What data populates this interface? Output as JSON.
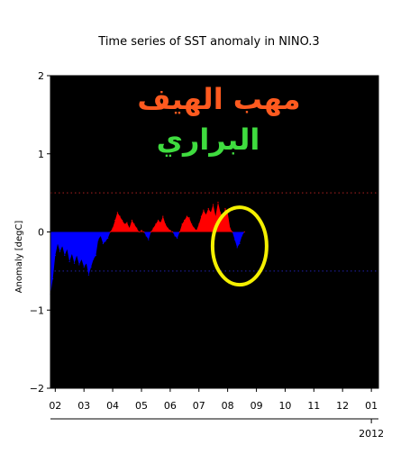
{
  "chart_data": {
    "type": "area",
    "title": "Time series of SST anomaly in NINO.3",
    "ylabel": "Anomaly [degC]",
    "xlabel": "",
    "ylim": [
      -2,
      2
    ],
    "xlim": [
      "2001-11-01",
      "2013-04-01"
    ],
    "yticks": [
      {
        "value": 2,
        "label": "2"
      },
      {
        "value": 1,
        "label": "1"
      },
      {
        "value": 0,
        "label": "0"
      },
      {
        "value": -1,
        "label": "−1"
      },
      {
        "value": -2,
        "label": "−2"
      }
    ],
    "xticks": [
      {
        "date": "2002-01-01",
        "label": "02"
      },
      {
        "date": "2003-01-01",
        "label": "03"
      },
      {
        "date": "2004-01-01",
        "label": "04"
      },
      {
        "date": "2005-01-01",
        "label": "05"
      },
      {
        "date": "2006-01-01",
        "label": "06"
      },
      {
        "date": "2007-01-01",
        "label": "07"
      },
      {
        "date": "2008-01-01",
        "label": "08"
      },
      {
        "date": "2009-01-01",
        "label": "09"
      },
      {
        "date": "2010-01-01",
        "label": "10"
      },
      {
        "date": "2011-01-01",
        "label": "11"
      },
      {
        "date": "2012-01-01",
        "label": "12"
      },
      {
        "date": "2013-01-01",
        "label": "01"
      }
    ],
    "secondary_axis": {
      "date": "2013-01-01",
      "label": "2012"
    },
    "thresholds": [
      {
        "value": 0.5,
        "style": "dotted",
        "color": "#8b1a1a"
      },
      {
        "value": -0.5,
        "style": "dotted",
        "color": "#1a1a8b"
      }
    ],
    "series": [
      {
        "positive_color": "#ff0000",
        "negative_color": "#0000ff",
        "points": [
          [
            "2001-11-01",
            -0.8
          ],
          [
            "2001-12-01",
            -0.6
          ],
          [
            "2002-01-01",
            -0.3
          ],
          [
            "2002-02-01",
            -0.15
          ],
          [
            "2002-03-01",
            -0.25
          ],
          [
            "2002-04-01",
            -0.18
          ],
          [
            "2002-05-01",
            -0.3
          ],
          [
            "2002-06-01",
            -0.22
          ],
          [
            "2002-07-01",
            -0.38
          ],
          [
            "2002-08-01",
            -0.28
          ],
          [
            "2002-09-01",
            -0.4
          ],
          [
            "2002-10-01",
            -0.3
          ],
          [
            "2002-11-01",
            -0.42
          ],
          [
            "2002-12-01",
            -0.35
          ],
          [
            "2003-01-01",
            -0.45
          ],
          [
            "2003-02-01",
            -0.4
          ],
          [
            "2003-03-01",
            -0.55
          ],
          [
            "2003-04-01",
            -0.45
          ],
          [
            "2003-05-01",
            -0.35
          ],
          [
            "2003-06-01",
            -0.3
          ],
          [
            "2003-07-01",
            -0.1
          ],
          [
            "2003-08-01",
            -0.05
          ],
          [
            "2003-09-01",
            -0.15
          ],
          [
            "2003-10-01",
            -0.12
          ],
          [
            "2003-11-01",
            -0.08
          ],
          [
            "2003-12-01",
            0.0
          ],
          [
            "2004-01-01",
            0.05
          ],
          [
            "2004-02-01",
            0.15
          ],
          [
            "2004-03-01",
            0.25
          ],
          [
            "2004-04-01",
            0.2
          ],
          [
            "2004-05-01",
            0.15
          ],
          [
            "2004-06-01",
            0.1
          ],
          [
            "2004-07-01",
            0.12
          ],
          [
            "2004-08-01",
            0.05
          ],
          [
            "2004-09-01",
            0.15
          ],
          [
            "2004-10-01",
            0.1
          ],
          [
            "2004-11-01",
            0.05
          ],
          [
            "2004-12-01",
            0.0
          ],
          [
            "2005-01-01",
            0.02
          ],
          [
            "2005-02-01",
            0.0
          ],
          [
            "2005-03-01",
            -0.05
          ],
          [
            "2005-04-01",
            -0.1
          ],
          [
            "2005-05-01",
            0.0
          ],
          [
            "2005-06-01",
            0.05
          ],
          [
            "2005-07-01",
            0.1
          ],
          [
            "2005-08-01",
            0.15
          ],
          [
            "2005-09-01",
            0.12
          ],
          [
            "2005-10-01",
            0.2
          ],
          [
            "2005-11-01",
            0.1
          ],
          [
            "2005-12-01",
            0.05
          ],
          [
            "2006-01-01",
            0.02
          ],
          [
            "2006-02-01",
            0.0
          ],
          [
            "2006-03-01",
            -0.05
          ],
          [
            "2006-04-01",
            -0.08
          ],
          [
            "2006-05-01",
            0.0
          ],
          [
            "2006-06-01",
            0.1
          ],
          [
            "2006-07-01",
            0.15
          ],
          [
            "2006-08-01",
            0.2
          ],
          [
            "2006-09-01",
            0.18
          ],
          [
            "2006-10-01",
            0.1
          ],
          [
            "2006-11-01",
            0.05
          ],
          [
            "2006-12-01",
            0.02
          ],
          [
            "2007-01-01",
            0.1
          ],
          [
            "2007-02-01",
            0.2
          ],
          [
            "2007-03-01",
            0.28
          ],
          [
            "2007-04-01",
            0.22
          ],
          [
            "2007-05-01",
            0.3
          ],
          [
            "2007-06-01",
            0.25
          ],
          [
            "2007-07-01",
            0.35
          ],
          [
            "2007-08-01",
            0.2
          ],
          [
            "2007-09-01",
            0.38
          ],
          [
            "2007-10-01",
            0.25
          ],
          [
            "2007-11-01",
            0.18
          ],
          [
            "2007-12-01",
            0.3
          ],
          [
            "2008-01-01",
            0.25
          ],
          [
            "2008-02-01",
            0.05
          ],
          [
            "2008-03-01",
            0.0
          ],
          [
            "2008-04-01",
            -0.1
          ],
          [
            "2008-05-01",
            -0.2
          ],
          [
            "2008-06-01",
            -0.15
          ],
          [
            "2008-07-01",
            -0.05
          ],
          [
            "2008-08-01",
            0.0
          ]
        ]
      }
    ]
  },
  "annotations": {
    "overlay_text_line1": "مهب الهيف",
    "overlay_text_line2": "البراري",
    "highlight_ellipse": {
      "center": [
        "2008-06-01",
        -0.18
      ],
      "color": "#f5f000"
    }
  }
}
